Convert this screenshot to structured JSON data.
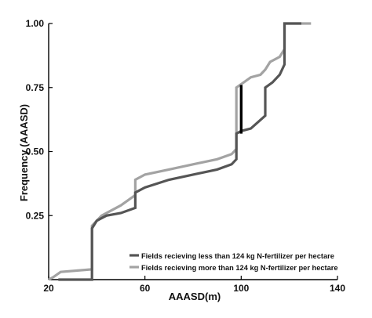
{
  "chart_data": {
    "type": "line",
    "title": "",
    "xlabel": "AAASD(m)",
    "ylabel": "Frequency (AAASD)",
    "xlim": [
      20,
      140
    ],
    "ylim": [
      0,
      1.0
    ],
    "x_ticks": [
      {
        "value": 20,
        "label": "20"
      },
      {
        "value": 60,
        "label": "60"
      },
      {
        "value": 100,
        "label": "100"
      },
      {
        "value": 140,
        "label": "140"
      }
    ],
    "y_ticks": [
      {
        "value": 0.25,
        "label": "0.25"
      },
      {
        "value": 0.5,
        "label": "0.50"
      },
      {
        "value": 0.75,
        "label": "0.75"
      },
      {
        "value": 1.0,
        "label": "1.00"
      }
    ],
    "grid": false,
    "legend_position": "bottom-right",
    "series": [
      {
        "name": "Fields recieving less than 124 kg N-fertilizer per hectare",
        "color": "#555555",
        "points": [
          [
            24,
            0.0
          ],
          [
            38,
            0.0
          ],
          [
            38,
            0.2
          ],
          [
            40,
            0.23
          ],
          [
            44,
            0.25
          ],
          [
            50,
            0.26
          ],
          [
            56,
            0.28
          ],
          [
            56,
            0.34
          ],
          [
            60,
            0.36
          ],
          [
            70,
            0.39
          ],
          [
            80,
            0.41
          ],
          [
            90,
            0.43
          ],
          [
            96,
            0.45
          ],
          [
            98,
            0.47
          ],
          [
            98,
            0.57
          ],
          [
            100,
            0.58
          ],
          [
            104,
            0.59
          ],
          [
            110,
            0.64
          ],
          [
            110,
            0.75
          ],
          [
            113,
            0.77
          ],
          [
            116,
            0.8
          ],
          [
            118,
            0.84
          ],
          [
            118,
            1.0
          ],
          [
            125,
            1.0
          ]
        ]
      },
      {
        "name": "Fields recieving more than 124 kg N-fertilizer per hectare",
        "color": "#a3a3a3",
        "points": [
          [
            20,
            0.0
          ],
          [
            22,
            0.01
          ],
          [
            25,
            0.03
          ],
          [
            38,
            0.04
          ],
          [
            38,
            0.21
          ],
          [
            42,
            0.25
          ],
          [
            50,
            0.29
          ],
          [
            56,
            0.33
          ],
          [
            56,
            0.39
          ],
          [
            60,
            0.41
          ],
          [
            70,
            0.43
          ],
          [
            80,
            0.45
          ],
          [
            90,
            0.47
          ],
          [
            96,
            0.49
          ],
          [
            98,
            0.51
          ],
          [
            98,
            0.75
          ],
          [
            104,
            0.79
          ],
          [
            108,
            0.8
          ],
          [
            110,
            0.82
          ],
          [
            112,
            0.85
          ],
          [
            116,
            0.87
          ],
          [
            118,
            0.9
          ],
          [
            118,
            1.0
          ],
          [
            129,
            1.0
          ]
        ]
      }
    ],
    "annotations": [
      {
        "type": "vertical-segment",
        "x": 100,
        "y_from": 0.57,
        "y_to": 0.76,
        "color": "#000000"
      }
    ]
  }
}
